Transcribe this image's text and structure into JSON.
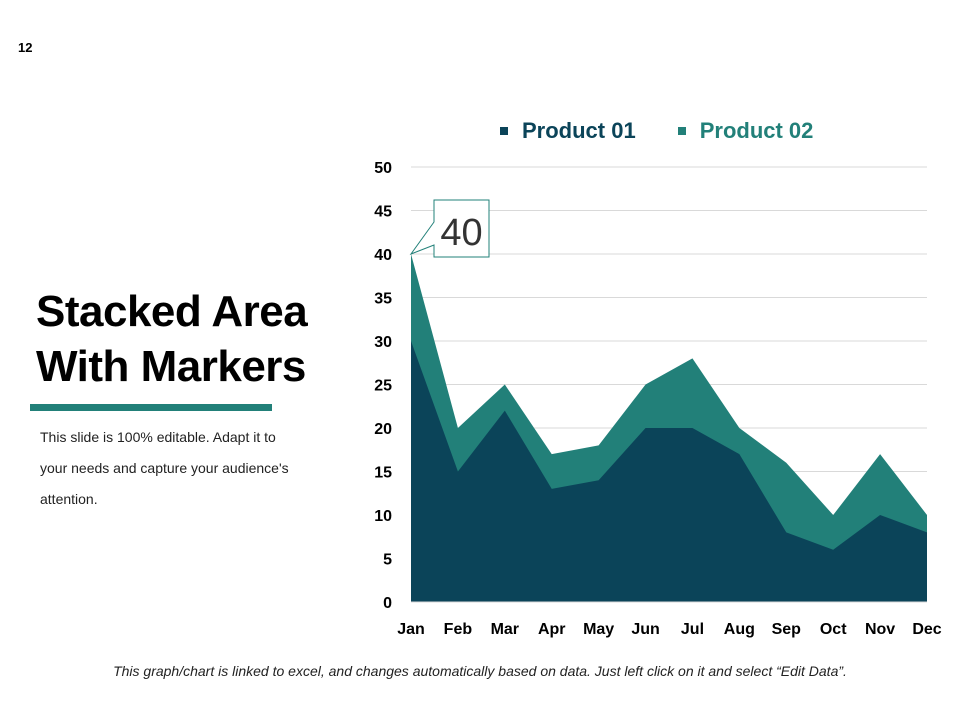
{
  "page_number": "12",
  "title_lines": [
    "Stacked Area",
    "With Markers"
  ],
  "description": "This slide is 100% editable. Adapt it to your needs and capture your audience's attention.",
  "footer": "This graph/chart is linked to excel, and changes automatically based on data. Just left click on it and select “Edit Data”.",
  "colors": {
    "product01": "#0b4459",
    "product02": "#228079",
    "accent": "#228079",
    "legend_text01": "#0b4459",
    "legend_text02": "#228079"
  },
  "legend": [
    {
      "name": "Product 01"
    },
    {
      "name": "Product 02"
    }
  ],
  "callout": {
    "label": "40",
    "month_index": 0
  },
  "chart_data": {
    "type": "area",
    "stacked": true,
    "categories": [
      "Jan",
      "Feb",
      "Mar",
      "Apr",
      "May",
      "Jun",
      "Jul",
      "Aug",
      "Sep",
      "Oct",
      "Nov",
      "Dec"
    ],
    "series": [
      {
        "name": "Product 01",
        "values": [
          30,
          15,
          22,
          13,
          14,
          20,
          20,
          17,
          8,
          6,
          10,
          8
        ]
      },
      {
        "name": "Product 02",
        "values": [
          10,
          5,
          3,
          4,
          4,
          5,
          8,
          3,
          8,
          4,
          7,
          2
        ]
      }
    ],
    "yticks": [
      0,
      5,
      10,
      15,
      20,
      25,
      30,
      35,
      40,
      45,
      50
    ],
    "ylim": [
      0,
      50
    ],
    "grid": true,
    "legend_position": "top"
  }
}
